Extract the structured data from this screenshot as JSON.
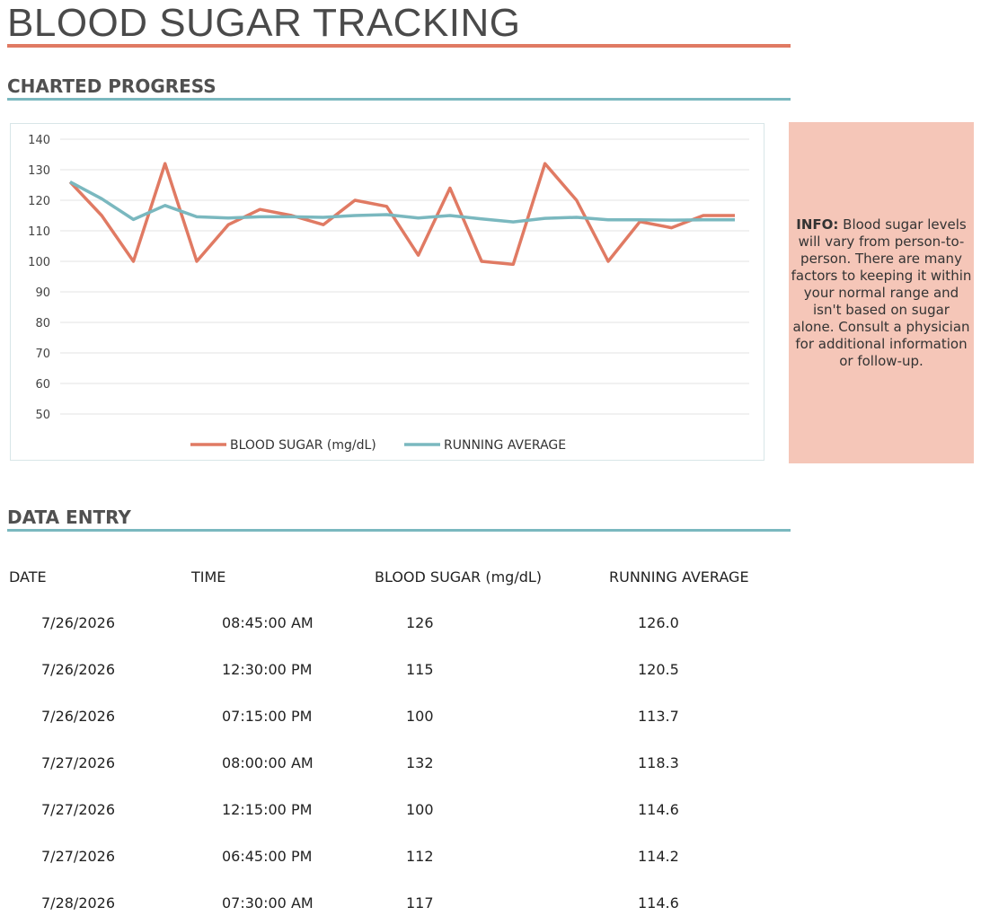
{
  "page": {
    "title": "BLOOD SUGAR TRACKING",
    "sections": {
      "chart": "CHARTED PROGRESS",
      "data": "DATA ENTRY"
    }
  },
  "info": {
    "label": "INFO:",
    "text": "Blood sugar levels will vary from person-to-person. There are many factors to keeping it within your normal range and isn't based on sugar alone. Consult a physician for additional information or follow-up."
  },
  "chart_data": {
    "type": "line",
    "ylim": [
      50,
      140
    ],
    "yticks": [
      140,
      130,
      120,
      110,
      100,
      90,
      80,
      70,
      60,
      50
    ],
    "grid": true,
    "legend": "bottom",
    "series": [
      {
        "name": "BLOOD SUGAR (mg/dL)",
        "color": "#e07a63",
        "values": [
          126,
          115,
          100,
          132,
          100,
          112,
          117,
          115,
          112,
          120,
          118,
          102,
          124,
          100,
          99,
          132,
          120,
          100,
          113,
          111,
          115,
          115
        ]
      },
      {
        "name": "RUNNING AVERAGE",
        "color": "#7ab8bf",
        "values": [
          126.0,
          120.5,
          113.7,
          118.3,
          114.6,
          114.2,
          114.6,
          114.6,
          114.4,
          115.0,
          115.3,
          114.2,
          115.0,
          113.9,
          112.9,
          114.1,
          114.4,
          113.6,
          113.6,
          113.5,
          113.6,
          113.6
        ]
      }
    ]
  },
  "table": {
    "headers": [
      "DATE",
      "TIME",
      "BLOOD SUGAR (mg/dL)",
      "RUNNING AVERAGE"
    ],
    "rows": [
      [
        "7/26/2026",
        "08:45:00 AM",
        "126",
        "126.0"
      ],
      [
        "7/26/2026",
        "12:30:00 PM",
        "115",
        "120.5"
      ],
      [
        "7/26/2026",
        "07:15:00 PM",
        "100",
        "113.7"
      ],
      [
        "7/27/2026",
        "08:00:00 AM",
        "132",
        "118.3"
      ],
      [
        "7/27/2026",
        "12:15:00 PM",
        "100",
        "114.6"
      ],
      [
        "7/27/2026",
        "06:45:00 PM",
        "112",
        "114.2"
      ],
      [
        "7/28/2026",
        "07:30:00 AM",
        "117",
        "114.6"
      ]
    ]
  }
}
